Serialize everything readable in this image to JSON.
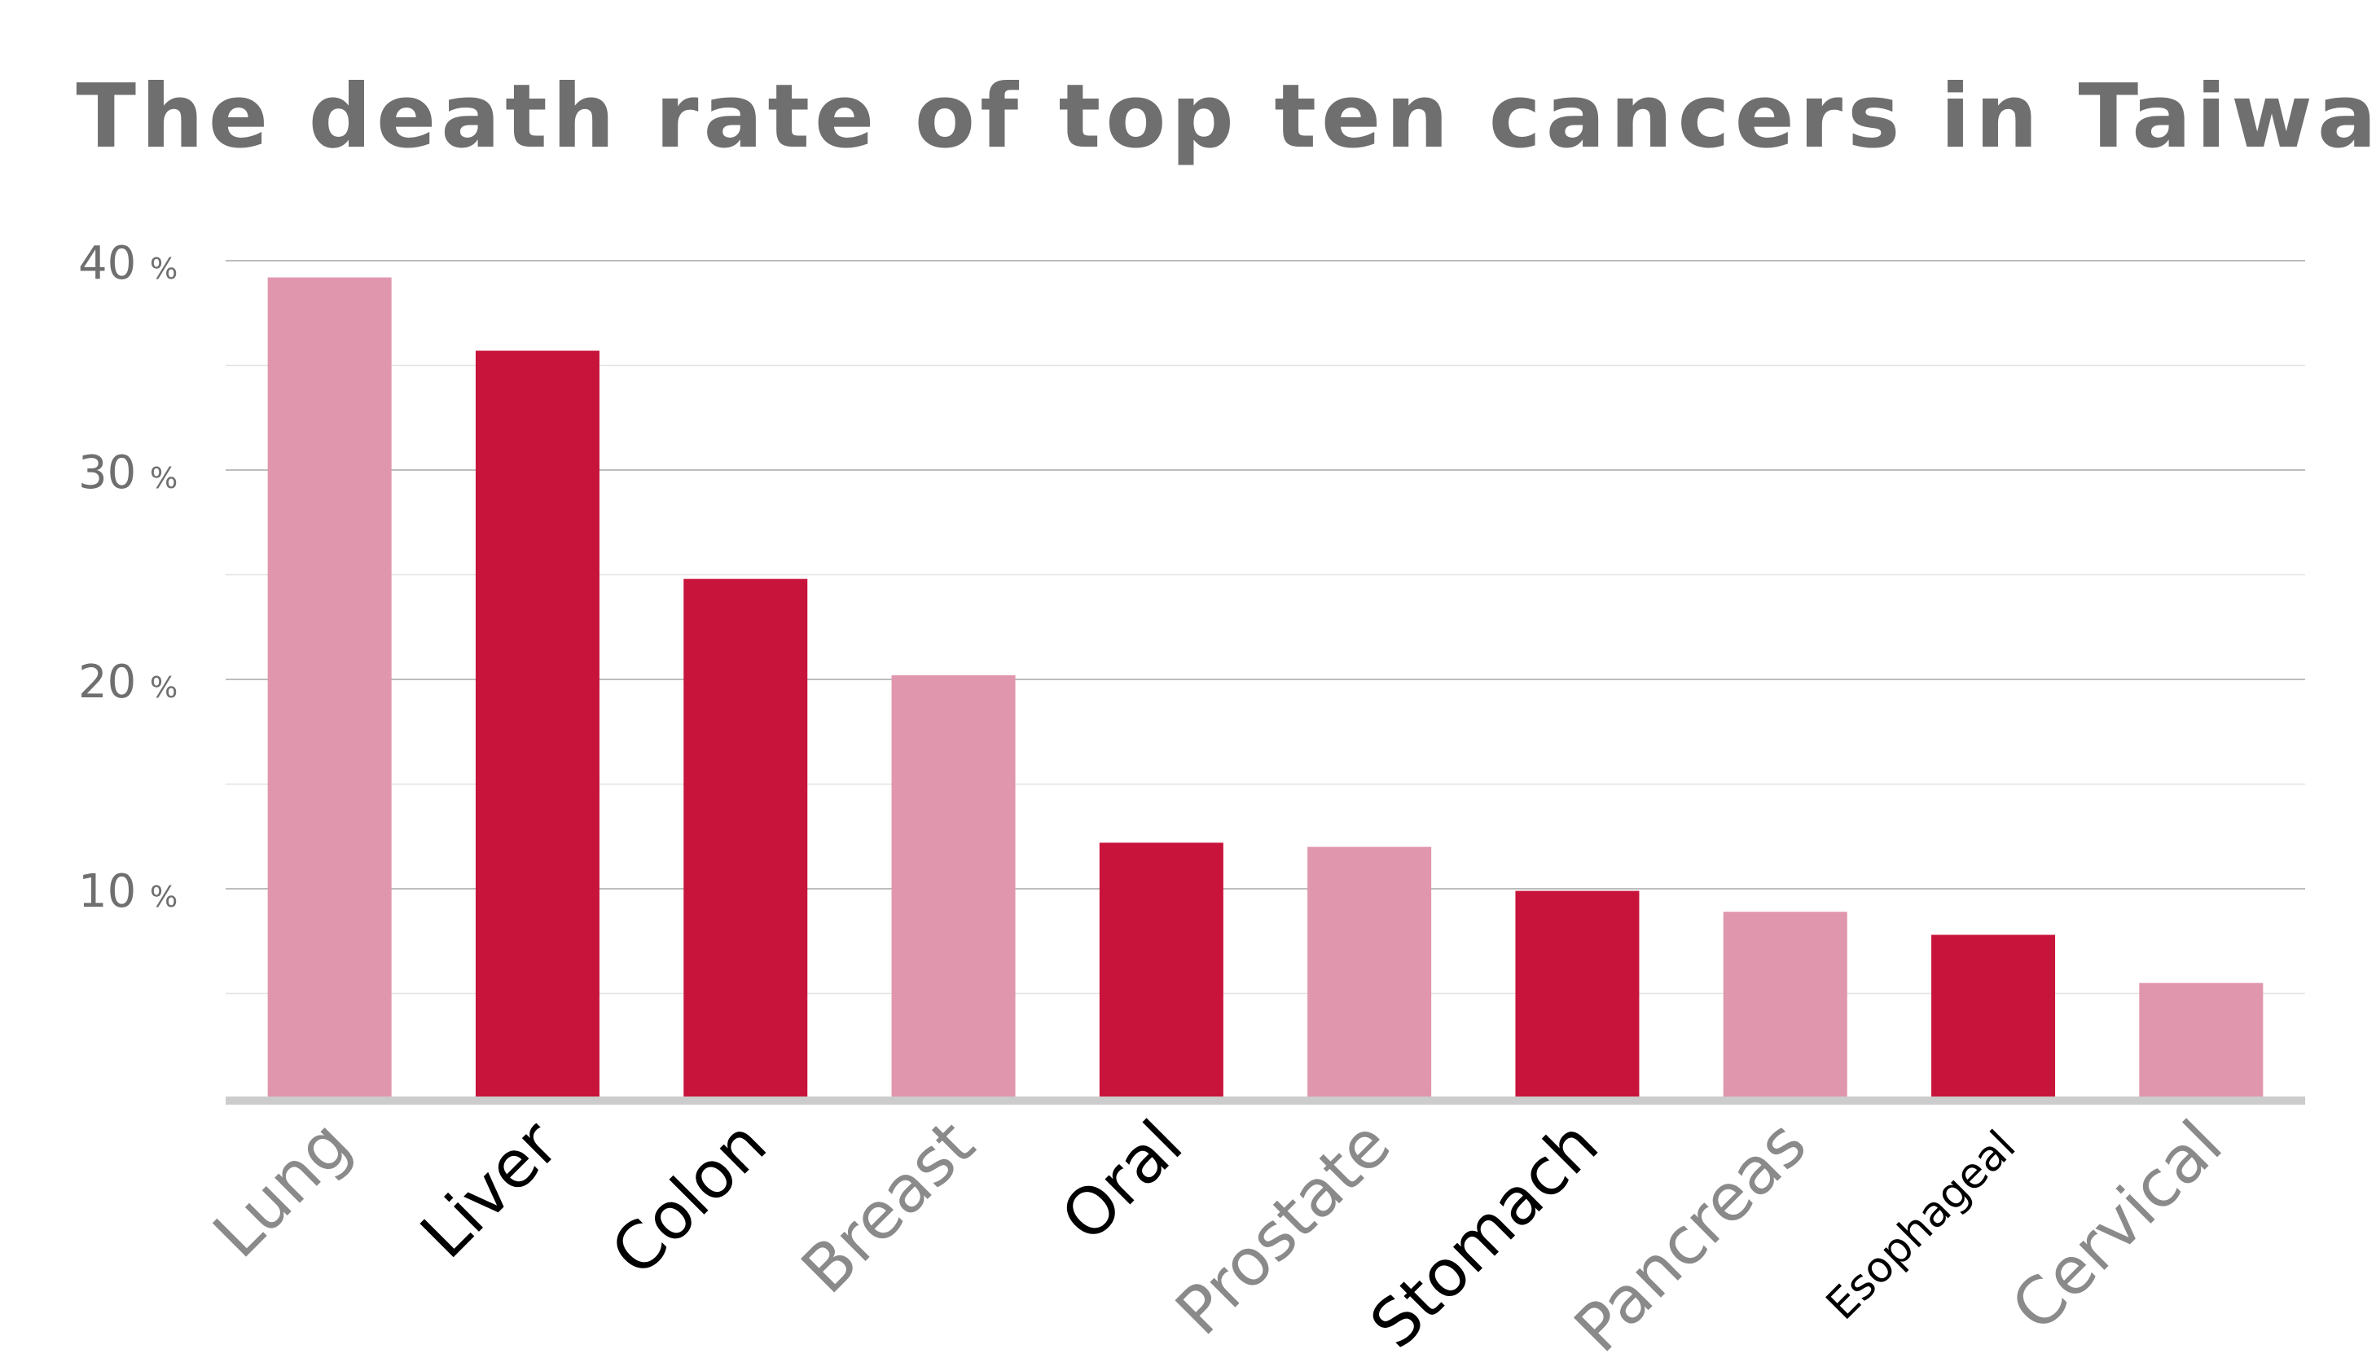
{
  "chart_data": {
    "type": "bar",
    "title": "The death rate of top ten cancers in Taiwan",
    "categories": [
      "Lung",
      "Liver",
      "Colon",
      "Breast",
      "Oral",
      "Prostate",
      "Stomach",
      "Pancreas",
      "Esophageal",
      "Cervical"
    ],
    "values": [
      39.2,
      35.7,
      24.8,
      20.2,
      12.2,
      12.0,
      9.9,
      8.9,
      7.8,
      5.5
    ],
    "ylim": [
      0,
      40
    ],
    "y_ticks": [
      {
        "value": 10,
        "label": "10",
        "unit": "%"
      },
      {
        "value": 20,
        "label": "20",
        "unit": "%"
      },
      {
        "value": 30,
        "label": "30",
        "unit": "%"
      },
      {
        "value": 40,
        "label": "40",
        "unit": "%"
      }
    ],
    "grid": true,
    "bar_colors": [
      "#e096ac",
      "#c8143b",
      "#c8143b",
      "#e096ac",
      "#c8143b",
      "#e096ac",
      "#c8143b",
      "#e096ac",
      "#c8143b",
      "#e096ac"
    ],
    "label_colors": [
      "#8a8a8a",
      "#000000",
      "#000000",
      "#8a8a8a",
      "#000000",
      "#8a8a8a",
      "#000000",
      "#8a8a8a",
      "#000000",
      "#8a8a8a"
    ],
    "colors": {
      "light_bar": "#e096ac",
      "dark_bar": "#c8143b",
      "gridline": "#bdbdbd",
      "minor_gridline": "#e2e2e2",
      "baseline": "#cccccc",
      "title_text": "#6f6f6f",
      "axis_text": "#6f6f6f"
    }
  }
}
